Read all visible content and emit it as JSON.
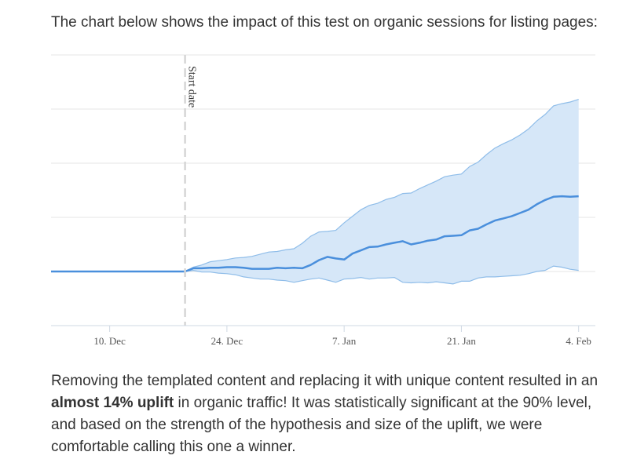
{
  "intro_text": "The chart below shows the impact of this test on organic sessions for listing pages:",
  "outro": {
    "part1": "Removing the templated content and replacing it with unique content resulted in an ",
    "bold": "almost 14% uplift",
    "part2": " in organic traffic! It was statistically significant at the 90% level, and based on the strength of the hypothesis and size of the uplift, we were comfortable calling this one a winner."
  },
  "colors": {
    "band_fill": "#d6e7f8",
    "band_edge": "#8fbde9",
    "line": "#4a8fdc",
    "grid": "#e5e5e5",
    "marker": "#d6d6d6"
  },
  "chart_data": {
    "type": "area",
    "title": "",
    "xlabel": "",
    "ylabel": "",
    "x_ticks": [
      "10. Dec",
      "24. Dec",
      "7. Jan",
      "21. Jan",
      "4. Feb"
    ],
    "x_start": "2018-12-03",
    "x_end": "2019-02-06",
    "ylim": [
      -0.1,
      0.4
    ],
    "grid": true,
    "annotation": {
      "label": "Start date",
      "date": "2018-12-19"
    },
    "series": [
      {
        "values": [
          [
            "2018-12-03",
            0
          ],
          [
            "2018-12-19",
            0
          ],
          [
            "2018-12-20",
            0.006
          ],
          [
            "2018-12-21",
            0.006
          ],
          [
            "2018-12-22",
            0.007
          ],
          [
            "2018-12-23",
            0.007
          ],
          [
            "2018-12-24",
            0.008
          ],
          [
            "2018-12-25",
            0.008
          ],
          [
            "2018-12-26",
            0.007
          ],
          [
            "2018-12-27",
            0.005
          ],
          [
            "2018-12-28",
            0.005
          ],
          [
            "2018-12-29",
            0.005
          ],
          [
            "2018-12-30",
            0.007
          ],
          [
            "2018-12-31",
            0.006
          ],
          [
            "2019-01-01",
            0.007
          ],
          [
            "2019-01-02",
            0.006
          ],
          [
            "2019-01-03",
            0.012
          ],
          [
            "2019-01-04",
            0.021
          ],
          [
            "2019-01-05",
            0.027
          ],
          [
            "2019-01-06",
            0.024
          ],
          [
            "2019-01-07",
            0.022
          ],
          [
            "2019-01-08",
            0.033
          ],
          [
            "2019-01-09",
            0.039
          ],
          [
            "2019-01-10",
            0.045
          ],
          [
            "2019-01-11",
            0.046
          ],
          [
            "2019-01-12",
            0.05
          ],
          [
            "2019-01-13",
            0.053
          ],
          [
            "2019-01-14",
            0.056
          ],
          [
            "2019-01-15",
            0.05
          ],
          [
            "2019-01-16",
            0.053
          ],
          [
            "2019-01-17",
            0.057
          ],
          [
            "2019-01-18",
            0.059
          ],
          [
            "2019-01-19",
            0.065
          ],
          [
            "2019-01-20",
            0.066
          ],
          [
            "2019-01-21",
            0.067
          ],
          [
            "2019-01-22",
            0.076
          ],
          [
            "2019-01-23",
            0.079
          ],
          [
            "2019-01-24",
            0.087
          ],
          [
            "2019-01-25",
            0.094
          ],
          [
            "2019-01-26",
            0.098
          ],
          [
            "2019-01-27",
            0.102
          ],
          [
            "2019-01-28",
            0.108
          ],
          [
            "2019-01-29",
            0.114
          ],
          [
            "2019-01-30",
            0.124
          ],
          [
            "2019-01-31",
            0.132
          ],
          [
            "2019-02-01",
            0.138
          ],
          [
            "2019-02-02",
            0.139
          ],
          [
            "2019-02-03",
            0.138
          ],
          [
            "2019-02-04",
            0.139
          ]
        ],
        "upper": [
          [
            "2018-12-03",
            0
          ],
          [
            "2018-12-19",
            0
          ],
          [
            "2018-12-20",
            0.008
          ],
          [
            "2018-12-21",
            0.012
          ],
          [
            "2018-12-22",
            0.018
          ],
          [
            "2018-12-23",
            0.02
          ],
          [
            "2018-12-24",
            0.022
          ],
          [
            "2018-12-25",
            0.025
          ],
          [
            "2018-12-26",
            0.026
          ],
          [
            "2018-12-27",
            0.028
          ],
          [
            "2018-12-28",
            0.032
          ],
          [
            "2018-12-29",
            0.036
          ],
          [
            "2018-12-30",
            0.037
          ],
          [
            "2018-12-31",
            0.04
          ],
          [
            "2019-01-01",
            0.042
          ],
          [
            "2019-01-02",
            0.052
          ],
          [
            "2019-01-03",
            0.065
          ],
          [
            "2019-01-04",
            0.073
          ],
          [
            "2019-01-05",
            0.074
          ],
          [
            "2019-01-06",
            0.076
          ],
          [
            "2019-01-07",
            0.09
          ],
          [
            "2019-01-08",
            0.102
          ],
          [
            "2019-01-09",
            0.114
          ],
          [
            "2019-01-10",
            0.122
          ],
          [
            "2019-01-11",
            0.126
          ],
          [
            "2019-01-12",
            0.133
          ],
          [
            "2019-01-13",
            0.137
          ],
          [
            "2019-01-14",
            0.144
          ],
          [
            "2019-01-15",
            0.145
          ],
          [
            "2019-01-16",
            0.153
          ],
          [
            "2019-01-17",
            0.16
          ],
          [
            "2019-01-18",
            0.167
          ],
          [
            "2019-01-19",
            0.175
          ],
          [
            "2019-01-20",
            0.178
          ],
          [
            "2019-01-21",
            0.18
          ],
          [
            "2019-01-22",
            0.194
          ],
          [
            "2019-01-23",
            0.202
          ],
          [
            "2019-01-24",
            0.216
          ],
          [
            "2019-01-25",
            0.228
          ],
          [
            "2019-01-26",
            0.236
          ],
          [
            "2019-01-27",
            0.243
          ],
          [
            "2019-01-28",
            0.252
          ],
          [
            "2019-01-29",
            0.263
          ],
          [
            "2019-01-30",
            0.278
          ],
          [
            "2019-01-31",
            0.29
          ],
          [
            "2019-02-01",
            0.306
          ],
          [
            "2019-02-02",
            0.31
          ],
          [
            "2019-02-03",
            0.313
          ],
          [
            "2019-02-04",
            0.318
          ]
        ],
        "lower": [
          [
            "2018-12-03",
            0
          ],
          [
            "2018-12-19",
            0
          ],
          [
            "2018-12-20",
            0.002
          ],
          [
            "2018-12-21",
            -0.001
          ],
          [
            "2018-12-22",
            -0.001
          ],
          [
            "2018-12-23",
            -0.003
          ],
          [
            "2018-12-24",
            -0.004
          ],
          [
            "2018-12-25",
            -0.006
          ],
          [
            "2018-12-26",
            -0.01
          ],
          [
            "2018-12-27",
            -0.012
          ],
          [
            "2018-12-28",
            -0.014
          ],
          [
            "2018-12-29",
            -0.014
          ],
          [
            "2018-12-30",
            -0.016
          ],
          [
            "2018-12-31",
            -0.017
          ],
          [
            "2019-01-01",
            -0.02
          ],
          [
            "2019-01-02",
            -0.017
          ],
          [
            "2019-01-03",
            -0.014
          ],
          [
            "2019-01-04",
            -0.012
          ],
          [
            "2019-01-05",
            -0.016
          ],
          [
            "2019-01-06",
            -0.02
          ],
          [
            "2019-01-07",
            -0.014
          ],
          [
            "2019-01-08",
            -0.013
          ],
          [
            "2019-01-09",
            -0.011
          ],
          [
            "2019-01-10",
            -0.014
          ],
          [
            "2019-01-11",
            -0.012
          ],
          [
            "2019-01-12",
            -0.012
          ],
          [
            "2019-01-13",
            -0.011
          ],
          [
            "2019-01-14",
            -0.02
          ],
          [
            "2019-01-15",
            -0.021
          ],
          [
            "2019-01-16",
            -0.02
          ],
          [
            "2019-01-17",
            -0.021
          ],
          [
            "2019-01-18",
            -0.019
          ],
          [
            "2019-01-19",
            -0.021
          ],
          [
            "2019-01-20",
            -0.023
          ],
          [
            "2019-01-21",
            -0.018
          ],
          [
            "2019-01-22",
            -0.018
          ],
          [
            "2019-01-23",
            -0.012
          ],
          [
            "2019-01-24",
            -0.01
          ],
          [
            "2019-01-25",
            -0.01
          ],
          [
            "2019-01-26",
            -0.009
          ],
          [
            "2019-01-27",
            -0.008
          ],
          [
            "2019-01-28",
            -0.007
          ],
          [
            "2019-01-29",
            -0.004
          ],
          [
            "2019-01-30",
            0
          ],
          [
            "2019-01-31",
            0.002
          ],
          [
            "2019-02-01",
            0.01
          ],
          [
            "2019-02-02",
            0.008
          ],
          [
            "2019-02-03",
            0.004
          ],
          [
            "2019-02-04",
            0.002
          ]
        ]
      }
    ]
  }
}
